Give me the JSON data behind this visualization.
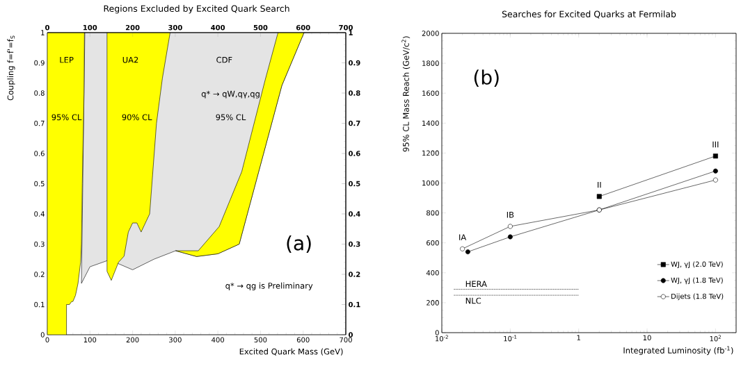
{
  "chart_data": [
    {
      "type": "area",
      "title": "Regions Excluded by Excited Quark Search",
      "xlabel": "Excited Quark Mass (GeV)",
      "ylabel": "Coupling f=f'=f$_{S}$",
      "xlim": [
        0,
        700
      ],
      "ylim": [
        0,
        1
      ],
      "xticks": [
        0,
        100,
        200,
        300,
        400,
        500,
        600,
        700
      ],
      "yticks": [
        0,
        0.1,
        0.2,
        0.3,
        0.4,
        0.5,
        0.6,
        0.7,
        0.8,
        0.9,
        1
      ],
      "x2lim": [
        0,
        700
      ],
      "x2ticks": [
        0,
        100,
        200,
        300,
        400,
        500,
        600,
        700
      ],
      "y2lim": [
        0,
        1
      ],
      "y2ticks": [
        0,
        0.1,
        0.2,
        0.3,
        0.4,
        0.5,
        0.6,
        0.7,
        0.8,
        0.9,
        1
      ],
      "series": [
        {
          "color": "#e4e4e4",
          "x": [
            88,
            602,
            550,
            450,
            400,
            350,
            301,
            250,
            200,
            167,
            140,
            100,
            80
          ],
          "values": [
            1,
            1,
            0.825,
            0.3,
            0.268,
            0.259,
            0.278,
            0.25,
            0.215,
            0.235,
            0.245,
            0.225,
            0.17
          ]
        },
        {
          "color": "#ffff00",
          "x": [
            541,
            602,
            550,
            450,
            400,
            350,
            301,
            354,
            403,
            456,
            511
          ],
          "values": [
            1,
            1,
            0.825,
            0.3,
            0.268,
            0.259,
            0.278,
            0.278,
            0.358,
            0.54,
            0.844
          ]
        },
        {
          "color": "#ffff00",
          "x": [
            0,
            87,
            86,
            82,
            80,
            78,
            72,
            66,
            60,
            57,
            52,
            45,
            45,
            0
          ],
          "values": [
            1,
            1,
            0.8,
            0.5,
            0.3,
            0.24,
            0.17,
            0.13,
            0.11,
            0.11,
            0.1,
            0.1,
            0,
            0
          ]
        },
        {
          "color": "#ffff00",
          "x": [
            140,
            288,
            270,
            256,
            240,
            230,
            220,
            210,
            200,
            190,
            180,
            167,
            150,
            140
          ],
          "values": [
            1,
            1,
            0.85,
            0.7,
            0.4,
            0.37,
            0.34,
            0.37,
            0.37,
            0.34,
            0.26,
            0.24,
            0.18,
            0.21
          ]
        }
      ],
      "annotations": [
        "LEP",
        "95% CL",
        "UA2",
        "90% CL",
        "CDF",
        "q* → qW,qγ,qg",
        "95% CL",
        "(a)",
        "q* → qg is Preliminary"
      ]
    },
    {
      "type": "line",
      "title": "Searches for Excited Quarks at Fermilab",
      "xlabel": "Integrated Luminosity (fb$^{-1}$)",
      "ylabel": "95% CL Mass Reach (GeV/c$^{2}$)",
      "log": "x",
      "xlim": [
        0.01,
        200
      ],
      "ylim": [
        0,
        2000
      ],
      "xticks": [
        {
          "value": 0.01,
          "label": "10$^{-2}$"
        },
        {
          "value": 0.1,
          "label": "10$^{-1}$"
        },
        1,
        10,
        {
          "value": 100,
          "label": "10$^{2}$"
        }
      ],
      "yticks": [
        0,
        200,
        400,
        600,
        800,
        1000,
        1200,
        1400,
        1600,
        1800,
        2000
      ],
      "legend": "bottom right",
      "series": [
        {
          "name": "WJ, γJ (2.0 TeV)",
          "color": "#000000",
          "marker": "square",
          "x": [
            2,
            100
          ],
          "values": [
            910,
            1180
          ]
        },
        {
          "name": "WJ, γJ (1.8 TeV)",
          "color": "#000000",
          "marker": "circle",
          "x": [
            0.024,
            0.1,
            2,
            100
          ],
          "values": [
            540,
            640,
            820,
            1080
          ]
        },
        {
          "name": "Dijets (1.8 TeV)",
          "color": "#ffffff",
          "marker": "circle",
          "x": [
            0.02,
            0.1,
            2,
            100
          ],
          "values": [
            560,
            710,
            820,
            1020
          ]
        },
        {
          "name": "HERA",
          "type": "line",
          "line_style": "dotted",
          "color": "#333333",
          "x": [
            0.015,
            1
          ],
          "values": [
            290,
            290
          ]
        },
        {
          "name": "NLC",
          "type": "line",
          "line_style": "dotted",
          "color": "#333333",
          "x": [
            0.015,
            1
          ],
          "values": [
            250,
            250
          ]
        }
      ],
      "annotations": [
        {
          "text": "IA",
          "x": 0.02,
          "y": 560
        },
        {
          "text": "IB",
          "x": 0.1,
          "y": 710
        },
        {
          "text": "II",
          "x": 2,
          "y": 910
        },
        {
          "text": "III",
          "x": 100,
          "y": 1180
        },
        "(b)"
      ]
    }
  ]
}
